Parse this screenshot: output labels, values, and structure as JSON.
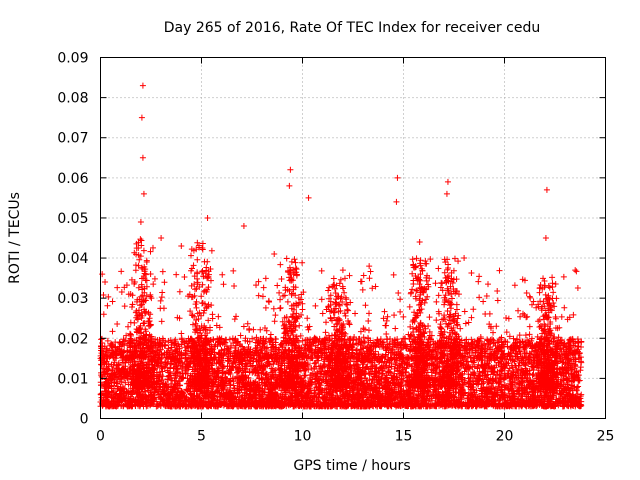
{
  "chart_data": {
    "type": "scatter",
    "title": "Day 265 of 2016, Rate Of TEC Index for receiver cedu",
    "xlabel": "GPS time / hours",
    "ylabel": "ROTI / TECUs",
    "xlim": [
      0,
      25
    ],
    "ylim": [
      0,
      0.09
    ],
    "x_ticks": [
      0,
      5,
      10,
      15,
      20,
      25
    ],
    "x_tick_labels": [
      "0",
      "5",
      "10",
      "15",
      "20",
      "25"
    ],
    "y_ticks": [
      0,
      0.01,
      0.02,
      0.03,
      0.04,
      0.05,
      0.06,
      0.07,
      0.08,
      0.09
    ],
    "y_tick_labels": [
      "0",
      "0.01",
      "0.02",
      "0.03",
      "0.04",
      "0.05",
      "0.06",
      "0.07",
      "0.08",
      "0.09"
    ],
    "grid": true,
    "marker": "+",
    "series_color": "#ff0000",
    "x_range_observed": [
      0,
      23.8
    ],
    "typical_band": [
      0.003,
      0.02
    ],
    "notable_points": [
      {
        "x": 2.1,
        "y": 0.083
      },
      {
        "x": 2.05,
        "y": 0.075
      },
      {
        "x": 2.1,
        "y": 0.065
      },
      {
        "x": 2.15,
        "y": 0.056
      },
      {
        "x": 2.0,
        "y": 0.049
      },
      {
        "x": 5.3,
        "y": 0.05
      },
      {
        "x": 7.1,
        "y": 0.048
      },
      {
        "x": 9.4,
        "y": 0.062
      },
      {
        "x": 9.35,
        "y": 0.058
      },
      {
        "x": 10.3,
        "y": 0.055
      },
      {
        "x": 14.7,
        "y": 0.06
      },
      {
        "x": 14.65,
        "y": 0.054
      },
      {
        "x": 17.2,
        "y": 0.059
      },
      {
        "x": 17.15,
        "y": 0.056
      },
      {
        "x": 22.1,
        "y": 0.057
      },
      {
        "x": 22.05,
        "y": 0.045
      },
      {
        "x": 18.0,
        "y": 0.04
      },
      {
        "x": 8.6,
        "y": 0.041
      },
      {
        "x": 15.8,
        "y": 0.044
      },
      {
        "x": 4.0,
        "y": 0.043
      },
      {
        "x": 3.0,
        "y": 0.045
      },
      {
        "x": 12.0,
        "y": 0.037
      },
      {
        "x": 13.3,
        "y": 0.038
      },
      {
        "x": 23.5,
        "y": 0.037
      }
    ],
    "bursts": [
      {
        "x_center": 2.1,
        "y_max": 0.045
      },
      {
        "x_center": 5.0,
        "y_max": 0.044
      },
      {
        "x_center": 9.4,
        "y_max": 0.04
      },
      {
        "x_center": 11.8,
        "y_max": 0.035
      },
      {
        "x_center": 15.8,
        "y_max": 0.04
      },
      {
        "x_center": 17.2,
        "y_max": 0.04
      },
      {
        "x_center": 22.1,
        "y_max": 0.035
      }
    ]
  }
}
